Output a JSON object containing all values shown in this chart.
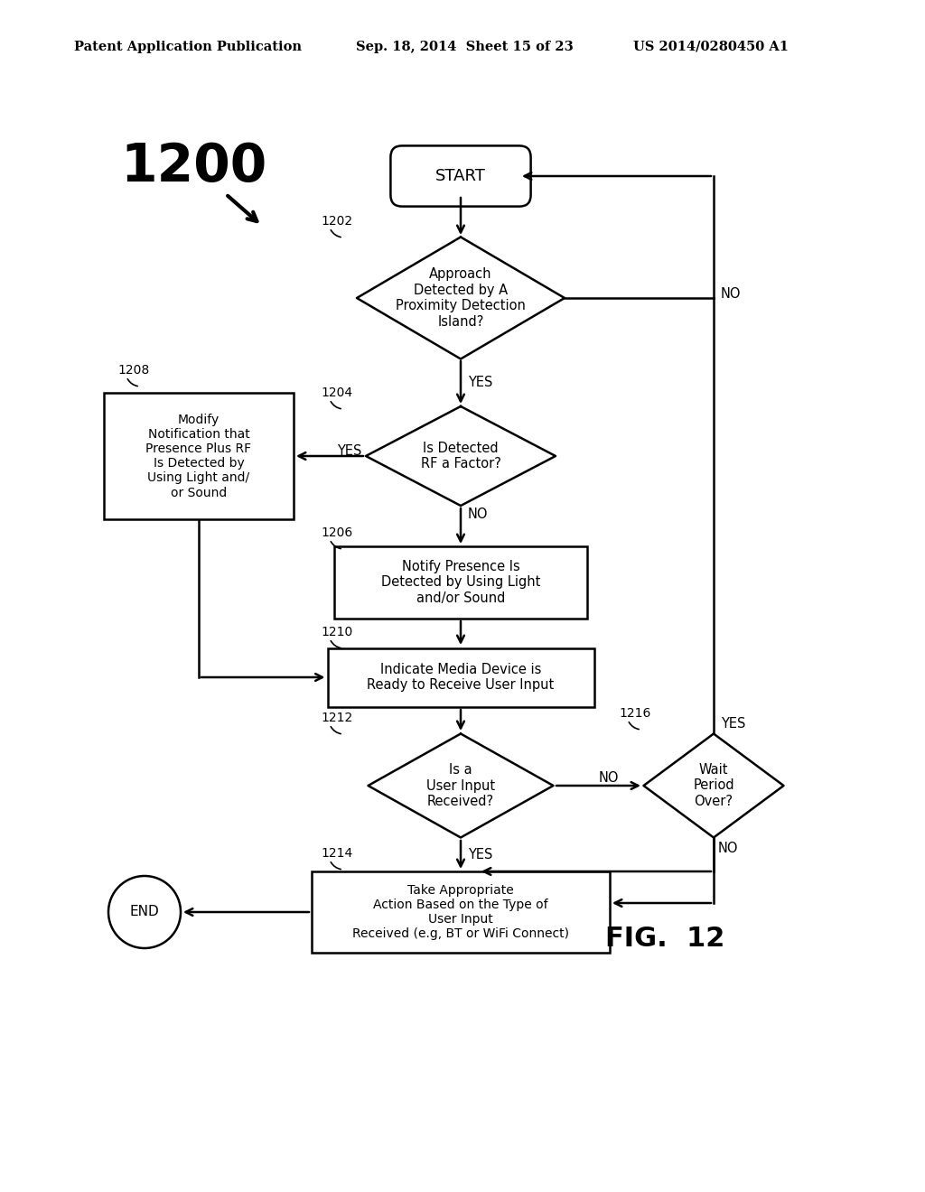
{
  "header_left": "Patent Application Publication",
  "header_mid": "Sep. 18, 2014  Sheet 15 of 23",
  "header_right": "US 2014/0280450 A1",
  "fig_label": "FIG.  12",
  "background_color": "#ffffff"
}
